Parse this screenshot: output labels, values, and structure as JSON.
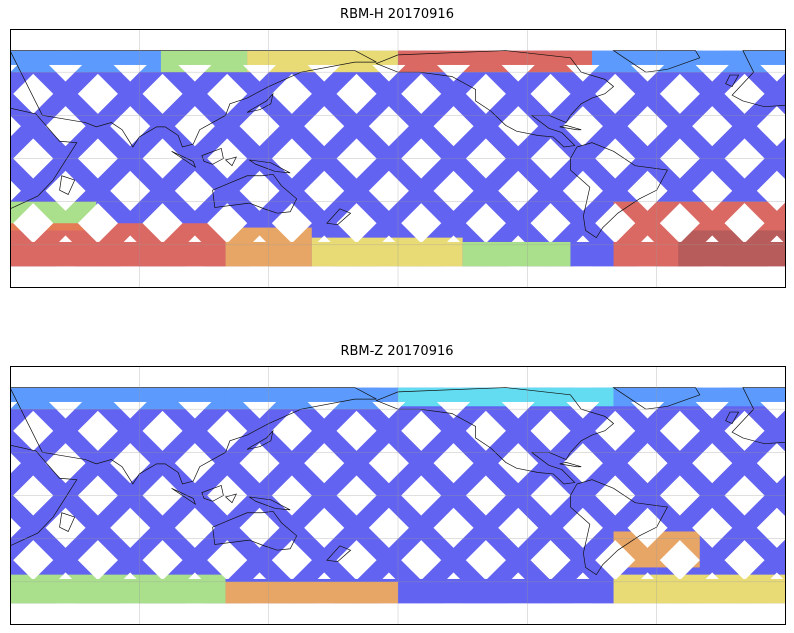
{
  "panels": [
    {
      "title": "RBM-H 20170916",
      "palette": [
        "#5b5bf0",
        "#5aa5ff",
        "#63f0f0",
        "#b6f57a",
        "#fff060",
        "#ffb14d",
        "#f06a4a",
        "#b05a5a"
      ],
      "bands": [
        {
          "lat_from": 60,
          "lat_to": 75,
          "lon_from": 20,
          "lon_to": 90,
          "level": 1
        },
        {
          "lat_from": 60,
          "lat_to": 75,
          "lon_from": 90,
          "lon_to": 130,
          "level": 3
        },
        {
          "lat_from": 60,
          "lat_to": 75,
          "lon_from": 130,
          "lon_to": 200,
          "level": 4
        },
        {
          "lat_from": 60,
          "lat_to": 75,
          "lon_from": 200,
          "lon_to": 290,
          "level": 6
        },
        {
          "lat_from": 60,
          "lat_to": 75,
          "lon_from": 290,
          "lon_to": 380,
          "level": 1
        },
        {
          "lat_from": -30,
          "lat_to": -50,
          "lon_from": 20,
          "lon_to": 60,
          "level": 3
        },
        {
          "lat_from": -45,
          "lat_to": -75,
          "lon_from": 20,
          "lon_to": 120,
          "level": 6
        },
        {
          "lat_from": -48,
          "lat_to": -75,
          "lon_from": 120,
          "lon_to": 160,
          "level": 5
        },
        {
          "lat_from": -55,
          "lat_to": -75,
          "lon_from": 160,
          "lon_to": 230,
          "level": 4
        },
        {
          "lat_from": -58,
          "lat_to": -75,
          "lon_from": 230,
          "lon_to": 280,
          "level": 3
        },
        {
          "lat_from": -30,
          "lat_to": -75,
          "lon_from": 300,
          "lon_to": 380,
          "level": 6
        },
        {
          "lat_from": -50,
          "lat_to": -75,
          "lon_from": 330,
          "lon_to": 380,
          "level": 7
        }
      ]
    },
    {
      "title": "RBM-Z 20170916",
      "palette": [
        "#5b5bf0",
        "#5aa5ff",
        "#63f0f0",
        "#b6f57a",
        "#fff060",
        "#ffb14d",
        "#f06a4a",
        "#b05a5a"
      ],
      "bands": [
        {
          "lat_from": 60,
          "lat_to": 75,
          "lon_from": 20,
          "lon_to": 120,
          "level": 1
        },
        {
          "lat_from": 60,
          "lat_to": 75,
          "lon_from": 120,
          "lon_to": 200,
          "level": 1
        },
        {
          "lat_from": 62,
          "lat_to": 75,
          "lon_from": 200,
          "lon_to": 300,
          "level": 2
        },
        {
          "lat_from": 62,
          "lat_to": 75,
          "lon_from": 300,
          "lon_to": 380,
          "level": 1
        },
        {
          "lat_from": -55,
          "lat_to": -75,
          "lon_from": 20,
          "lon_to": 120,
          "level": 3
        },
        {
          "lat_from": -60,
          "lat_to": -75,
          "lon_from": 120,
          "lon_to": 200,
          "level": 5
        },
        {
          "lat_from": -25,
          "lat_to": -50,
          "lon_from": 300,
          "lon_to": 340,
          "level": 5
        },
        {
          "lat_from": -55,
          "lat_to": -75,
          "lon_from": 300,
          "lon_to": 380,
          "level": 4
        }
      ]
    }
  ],
  "map": {
    "projection": "PlateCarree",
    "central_longitude": 200,
    "lon_range": [
      20,
      380
    ],
    "lat_range": [
      -90,
      90
    ],
    "data_lat_range": [
      -75,
      75
    ],
    "gridlines": true,
    "grid_lon_step": 60,
    "grid_lat_step": 30,
    "swath_angle_deg": 45,
    "swath_spacing_deg": 30
  }
}
